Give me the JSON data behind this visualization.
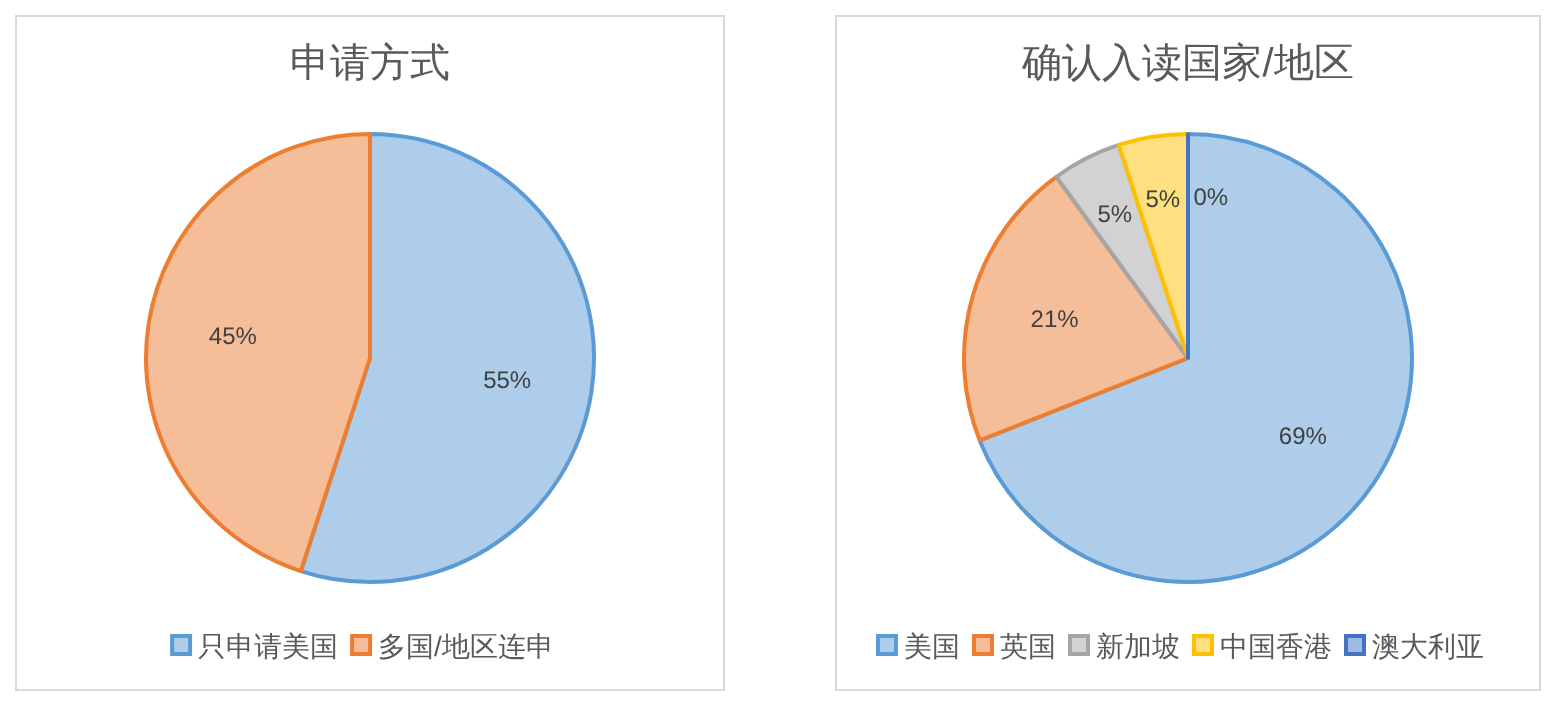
{
  "chart_data": [
    {
      "type": "pie",
      "title": "申请方式",
      "categories": [
        "只申请美国",
        "多国/地区连申"
      ],
      "values": [
        55,
        45
      ],
      "value_labels": [
        "55%",
        "45%"
      ],
      "colors": [
        "#5b9bd5",
        "#ed7d31"
      ],
      "legend": "bottom"
    },
    {
      "type": "pie",
      "title": "确认入读国家/地区",
      "categories": [
        "美国",
        "英国",
        "新加坡",
        "中国香港",
        "澳大利亚"
      ],
      "values": [
        69,
        21,
        5,
        5,
        0
      ],
      "value_labels": [
        "69%",
        "21%",
        "5%",
        "5%",
        "0%"
      ],
      "colors": [
        "#5b9bd5",
        "#ed7d31",
        "#a5a5a5",
        "#ffc000",
        "#4472c4"
      ],
      "legend": "bottom"
    }
  ]
}
